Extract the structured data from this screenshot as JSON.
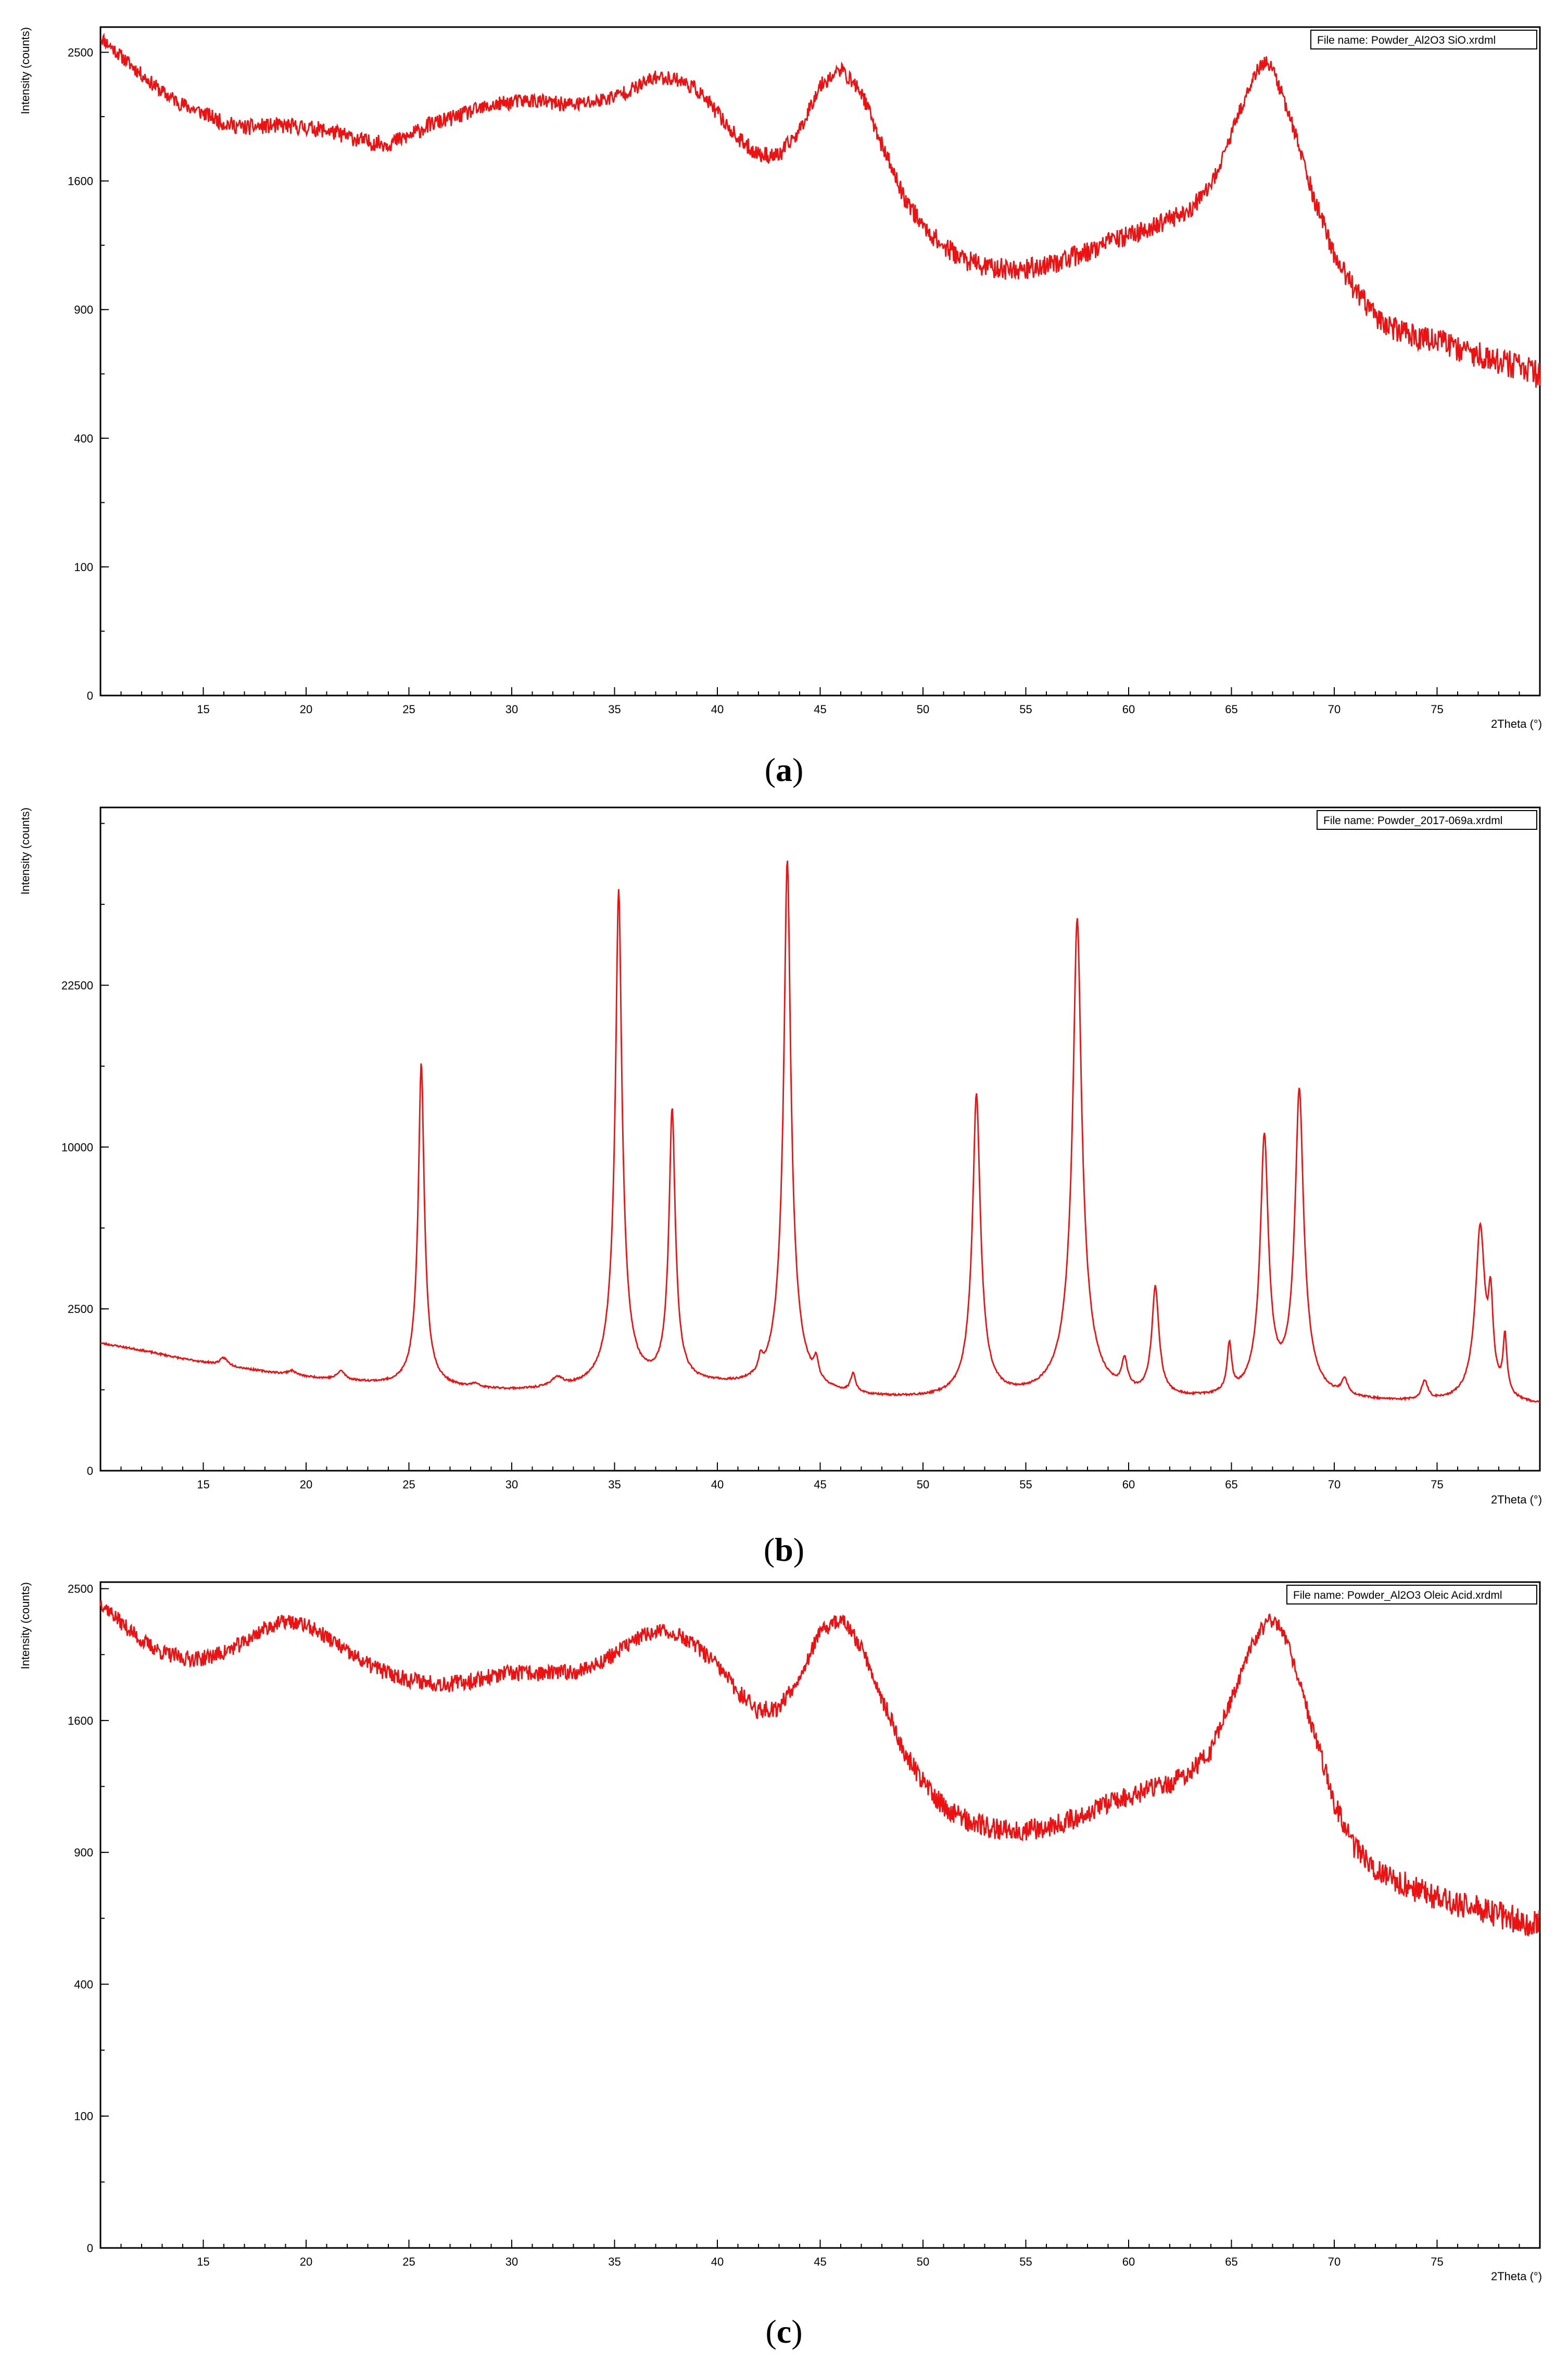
{
  "colors": {
    "series": "#ee1111",
    "axis": "#000000",
    "background": "#ffffff"
  },
  "chart_data": [
    {
      "type": "line",
      "panel": "a",
      "caption_letter": "a",
      "legend": "File name: Powder_Al2O3 SiO.xrdml",
      "xlabel": "2Theta (°)",
      "ylabel": "Intensity (counts)",
      "xlim": [
        10,
        80
      ],
      "xticks": [
        15,
        20,
        25,
        30,
        35,
        40,
        45,
        50,
        55,
        60,
        65,
        70,
        75
      ],
      "yscale": "sqrt",
      "ylim": [
        0,
        2700
      ],
      "yticks": [
        0,
        100,
        400,
        900,
        1600,
        2500
      ],
      "grid": false,
      "noise": 55,
      "seed": 11,
      "points": [
        [
          10,
          2620
        ],
        [
          11,
          2470
        ],
        [
          12,
          2330
        ],
        [
          13,
          2200
        ],
        [
          14,
          2110
        ],
        [
          15,
          2050
        ],
        [
          16,
          1980
        ],
        [
          17,
          1950
        ],
        [
          18,
          1960
        ],
        [
          19,
          1960
        ],
        [
          20,
          1950
        ],
        [
          21,
          1930
        ],
        [
          22,
          1890
        ],
        [
          23,
          1850
        ],
        [
          24,
          1840
        ],
        [
          25,
          1890
        ],
        [
          26,
          1970
        ],
        [
          27,
          2010
        ],
        [
          28,
          2060
        ],
        [
          29,
          2100
        ],
        [
          30,
          2130
        ],
        [
          31,
          2140
        ],
        [
          32,
          2120
        ],
        [
          33,
          2110
        ],
        [
          34,
          2130
        ],
        [
          35,
          2170
        ],
        [
          36,
          2230
        ],
        [
          37,
          2310
        ],
        [
          38,
          2300
        ],
        [
          39,
          2220
        ],
        [
          40,
          2050
        ],
        [
          41,
          1870
        ],
        [
          42,
          1770
        ],
        [
          43,
          1760
        ],
        [
          44,
          1930
        ],
        [
          45,
          2250
        ],
        [
          46,
          2370
        ],
        [
          47,
          2200
        ],
        [
          48,
          1830
        ],
        [
          49,
          1520
        ],
        [
          50,
          1330
        ],
        [
          51,
          1220
        ],
        [
          52,
          1150
        ],
        [
          53,
          1110
        ],
        [
          54,
          1100
        ],
        [
          55,
          1100
        ],
        [
          56,
          1120
        ],
        [
          57,
          1150
        ],
        [
          58,
          1190
        ],
        [
          59,
          1240
        ],
        [
          60,
          1280
        ],
        [
          61,
          1320
        ],
        [
          62,
          1370
        ],
        [
          63,
          1430
        ],
        [
          64,
          1560
        ],
        [
          65,
          1900
        ],
        [
          66,
          2300
        ],
        [
          66.6,
          2430
        ],
        [
          67,
          2380
        ],
        [
          68,
          1950
        ],
        [
          69,
          1500
        ],
        [
          70,
          1170
        ],
        [
          71,
          990
        ],
        [
          72,
          870
        ],
        [
          73,
          810
        ],
        [
          74,
          780
        ],
        [
          75,
          760
        ],
        [
          76,
          730
        ],
        [
          77,
          700
        ],
        [
          78,
          680
        ],
        [
          79,
          650
        ],
        [
          80,
          620
        ]
      ]
    },
    {
      "type": "line",
      "panel": "b",
      "caption_letter": "b",
      "legend": "File name: Powder_2017-069a.xrdml",
      "xlabel": "2Theta (°)",
      "ylabel": "Intensity (counts)",
      "xlim": [
        10,
        80
      ],
      "xticks": [
        15,
        20,
        25,
        30,
        35,
        40,
        45,
        50,
        55,
        60,
        65,
        70,
        75
      ],
      "yscale": "sqrt",
      "ylim": [
        0,
        42000
      ],
      "yticks": [
        0,
        2500,
        10000,
        22500
      ],
      "grid": false,
      "noise": 14,
      "seed": 23,
      "background_points": [
        [
          10,
          1550
        ],
        [
          12,
          1380
        ],
        [
          14,
          1190
        ],
        [
          16,
          1050
        ],
        [
          18,
          930
        ],
        [
          20,
          830
        ],
        [
          22,
          760
        ],
        [
          24,
          700
        ],
        [
          25,
          690
        ],
        [
          26,
          660
        ],
        [
          28,
          620
        ],
        [
          30,
          600
        ],
        [
          32,
          600
        ],
        [
          34,
          620
        ],
        [
          36,
          660
        ],
        [
          38,
          690
        ],
        [
          40,
          670
        ],
        [
          42,
          600
        ],
        [
          44,
          540
        ],
        [
          46,
          500
        ],
        [
          48,
          480
        ],
        [
          50,
          470
        ],
        [
          52,
          470
        ],
        [
          54,
          480
        ],
        [
          56,
          480
        ],
        [
          58,
          480
        ],
        [
          60,
          470
        ],
        [
          62,
          460
        ],
        [
          64,
          460
        ],
        [
          66,
          470
        ],
        [
          68,
          460
        ],
        [
          70,
          450
        ],
        [
          72,
          440
        ],
        [
          74,
          430
        ],
        [
          76,
          430
        ],
        [
          78,
          420
        ],
        [
          80,
          400
        ]
      ],
      "peaks": [
        [
          16.0,
          160,
          0.22
        ],
        [
          19.3,
          80,
          0.25
        ],
        [
          21.7,
          160,
          0.22
        ],
        [
          25.6,
          15200,
          0.13
        ],
        [
          28.2,
          60,
          0.25
        ],
        [
          32.2,
          160,
          0.35
        ],
        [
          35.2,
          31500,
          0.14
        ],
        [
          37.8,
          11800,
          0.14
        ],
        [
          42.1,
          300,
          0.11
        ],
        [
          43.4,
          35000,
          0.15
        ],
        [
          44.8,
          380,
          0.12
        ],
        [
          46.6,
          320,
          0.14
        ],
        [
          52.6,
          13100,
          0.17
        ],
        [
          57.5,
          28600,
          0.19
        ],
        [
          59.8,
          550,
          0.15
        ],
        [
          61.3,
          2700,
          0.17
        ],
        [
          64.9,
          960,
          0.12
        ],
        [
          66.6,
          10300,
          0.18
        ],
        [
          68.3,
          13400,
          0.19
        ],
        [
          70.5,
          260,
          0.17
        ],
        [
          74.4,
          300,
          0.17
        ],
        [
          77.1,
          5250,
          0.22
        ],
        [
          77.6,
          2300,
          0.12
        ],
        [
          78.3,
          1200,
          0.1
        ]
      ]
    },
    {
      "type": "line",
      "panel": "c",
      "caption_letter": "c",
      "legend": "File name: Powder_Al2O3 Oleic Acid.xrdml",
      "xlabel": "2Theta (°)",
      "ylabel": "Intensity (counts)",
      "xlim": [
        10,
        80
      ],
      "xticks": [
        15,
        20,
        25,
        30,
        35,
        40,
        45,
        50,
        55,
        60,
        65,
        70,
        75
      ],
      "yscale": "sqrt",
      "ylim": [
        0,
        2550
      ],
      "yticks": [
        0,
        100,
        400,
        900,
        1600,
        2500
      ],
      "grid": false,
      "noise": 55,
      "seed": 37,
      "points": [
        [
          10,
          2400
        ],
        [
          11,
          2250
        ],
        [
          12,
          2120
        ],
        [
          13,
          2040
        ],
        [
          14,
          2000
        ],
        [
          15,
          2000
        ],
        [
          16,
          2040
        ],
        [
          17,
          2110
        ],
        [
          18,
          2210
        ],
        [
          19,
          2260
        ],
        [
          20,
          2230
        ],
        [
          21,
          2150
        ],
        [
          22,
          2040
        ],
        [
          23,
          1960
        ],
        [
          24,
          1900
        ],
        [
          25,
          1860
        ],
        [
          26,
          1840
        ],
        [
          27,
          1830
        ],
        [
          28,
          1850
        ],
        [
          29,
          1880
        ],
        [
          30,
          1900
        ],
        [
          31,
          1900
        ],
        [
          32,
          1900
        ],
        [
          33,
          1910
        ],
        [
          34,
          1950
        ],
        [
          35,
          2030
        ],
        [
          36,
          2130
        ],
        [
          37,
          2190
        ],
        [
          38,
          2170
        ],
        [
          39,
          2080
        ],
        [
          40,
          1950
        ],
        [
          41,
          1780
        ],
        [
          42,
          1660
        ],
        [
          43,
          1680
        ],
        [
          44,
          1880
        ],
        [
          45,
          2180
        ],
        [
          46,
          2280
        ],
        [
          47,
          2080
        ],
        [
          48,
          1740
        ],
        [
          49,
          1430
        ],
        [
          50,
          1250
        ],
        [
          51,
          1120
        ],
        [
          52,
          1060
        ],
        [
          53,
          1020
        ],
        [
          54,
          1010
        ],
        [
          55,
          1010
        ],
        [
          56,
          1020
        ],
        [
          57,
          1050
        ],
        [
          58,
          1090
        ],
        [
          59,
          1140
        ],
        [
          60,
          1170
        ],
        [
          61,
          1210
        ],
        [
          62,
          1240
        ],
        [
          63,
          1300
        ],
        [
          64,
          1420
        ],
        [
          65,
          1730
        ],
        [
          66,
          2100
        ],
        [
          66.8,
          2270
        ],
        [
          67.5,
          2200
        ],
        [
          68,
          1980
        ],
        [
          69,
          1530
        ],
        [
          70,
          1140
        ],
        [
          71,
          920
        ],
        [
          72,
          830
        ],
        [
          73,
          780
        ],
        [
          74,
          740
        ],
        [
          75,
          710
        ],
        [
          76,
          680
        ],
        [
          77,
          660
        ],
        [
          78,
          640
        ],
        [
          79,
          620
        ],
        [
          80,
          600
        ]
      ]
    }
  ]
}
